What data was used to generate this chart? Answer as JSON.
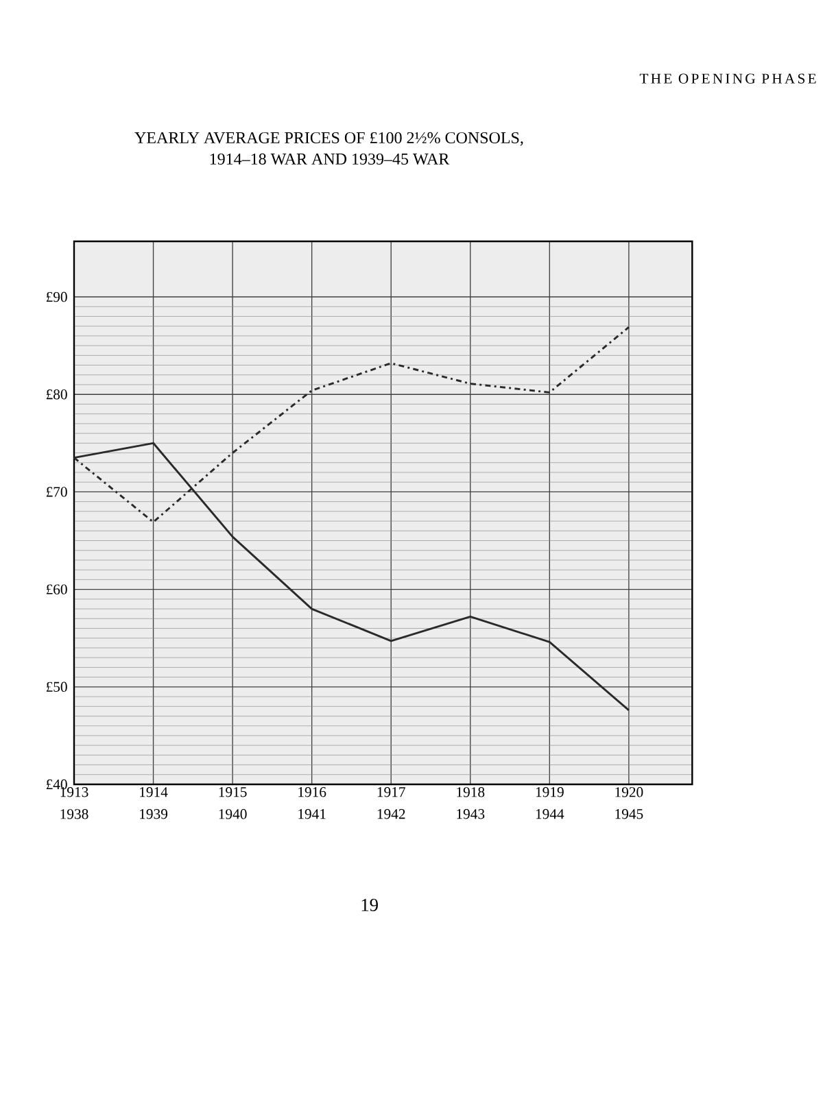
{
  "chart_data": {
    "type": "line",
    "title": "YEARLY AVERAGE PRICES OF £100 2½% CONSOLS,",
    "subtitle": "1914–18 WAR AND 1939–45 WAR",
    "annotations": [
      "THE OPENING PHASE",
      "19"
    ],
    "series": [
      {
        "color": "#2a2a2a",
        "line_style": "solid",
        "x": [
          1913,
          1914,
          1915,
          1916,
          1917,
          1918,
          1919,
          1920
        ],
        "values": [
          73.5,
          75.0,
          65.4,
          58.0,
          54.7,
          57.2,
          54.6,
          47.6
        ]
      },
      {
        "color": "#2a2a2a",
        "line_style": "dashdot",
        "axis": "x2",
        "x": [
          1938,
          1939,
          1940,
          1941,
          1942,
          1943,
          1944,
          1945
        ],
        "values": [
          73.5,
          66.9,
          74.0,
          80.4,
          83.2,
          81.1,
          80.2,
          86.9
        ]
      }
    ],
    "xlim": [
      1913,
      1920.8
    ],
    "xticks": [
      1913,
      1914,
      1915,
      1916,
      1917,
      1918,
      1919,
      1920
    ],
    "x2lim": [
      1938,
      1945.8
    ],
    "x2ticks": [
      1938,
      1939,
      1940,
      1941,
      1942,
      1943,
      1944,
      1945
    ],
    "ylim": [
      40,
      95.7
    ],
    "yticks": [
      {
        "value": 40,
        "label": "£40"
      },
      {
        "value": 50,
        "label": "£50"
      },
      {
        "value": 60,
        "label": "£60"
      },
      {
        "value": 70,
        "label": "£70"
      },
      {
        "value": 80,
        "label": "£80"
      },
      {
        "value": 90,
        "label": "£90"
      }
    ],
    "grid": true,
    "marker": "none"
  }
}
